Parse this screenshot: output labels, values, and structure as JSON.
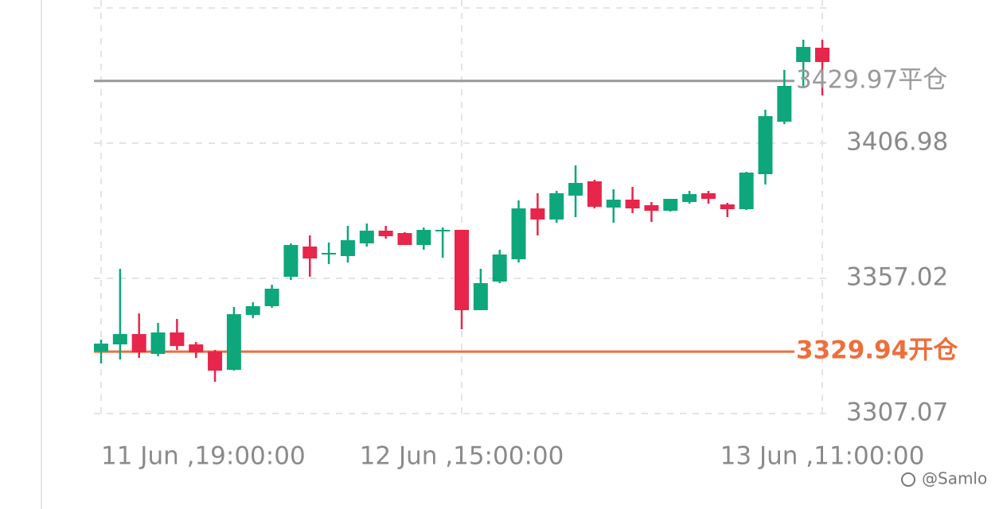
{
  "chart_data": {
    "type": "candlestick",
    "categories": [
      "11 Jun ,19:00:00",
      null,
      null,
      null,
      null,
      null,
      null,
      null,
      null,
      null,
      null,
      null,
      null,
      null,
      null,
      null,
      null,
      null,
      null,
      "12 Jun ,15:00:00",
      null,
      null,
      null,
      null,
      null,
      null,
      null,
      null,
      null,
      null,
      null,
      null,
      null,
      null,
      null,
      null,
      null,
      null,
      "13 Jun ,11:00:00"
    ],
    "open": [
      3329.98,
      3332.63,
      3336.45,
      3329.1,
      3337.04,
      3332.63,
      3329.98,
      3323.23,
      3343.5,
      3346.74,
      3357.61,
      3368.78,
      3365.84,
      3365.25,
      3369.95,
      3374.65,
      3373.77,
      3369.36,
      3374.65,
      3374.95,
      3345.27,
      3355.85,
      3364.08,
      3382.88,
      3378.77,
      3387.59,
      3392.88,
      3383.18,
      3386.12,
      3384.06,
      3382.0,
      3385.23,
      3388.47,
      3384.35,
      3382.59,
      3395.52,
      3414.92,
      3436.96,
      3442.25
    ],
    "high": [
      3334.39,
      3360.55,
      3344.09,
      3340.56,
      3342.03,
      3333.51,
      3330.57,
      3346.44,
      3348.21,
      3354.67,
      3369.95,
      3372.89,
      3370.25,
      3376.42,
      3377.3,
      3376.42,
      3374.07,
      3375.83,
      3375.83,
      3374.95,
      3360.55,
      3367.6,
      3385.82,
      3388.47,
      3389.35,
      3398.75,
      3393.46,
      3389.94,
      3390.82,
      3385.23,
      3386.41,
      3389.35,
      3389.35,
      3384.94,
      3396.4,
      3419.32,
      3434.02,
      3445.19,
      3445.19
    ],
    "low": [
      3325.58,
      3327.05,
      3327.63,
      3328.22,
      3330.57,
      3327.63,
      3318.82,
      3322.93,
      3342.33,
      3346.15,
      3356.43,
      3357.61,
      3362.31,
      3362.9,
      3368.78,
      3371.72,
      3369.36,
      3367.6,
      3364.66,
      3338.21,
      3345.27,
      3355.26,
      3362.9,
      3372.89,
      3377.59,
      3379.65,
      3382.88,
      3377.59,
      3381.12,
      3377.89,
      3381.71,
      3384.65,
      3384.65,
      3379.65,
      3382.3,
      3391.7,
      3414.03,
      3427.55,
      3424.61
    ],
    "close": [
      3332.92,
      3336.45,
      3329.69,
      3337.04,
      3332.04,
      3329.69,
      3322.93,
      3343.8,
      3346.74,
      3353.2,
      3369.36,
      3364.37,
      3366.43,
      3371.13,
      3374.65,
      3372.6,
      3369.36,
      3374.95,
      3374.95,
      3345.27,
      3355.26,
      3365.84,
      3382.88,
      3378.77,
      3388.47,
      3392.29,
      3383.47,
      3386.12,
      3382.88,
      3382.0,
      3386.41,
      3388.17,
      3386.41,
      3382.59,
      3396.11,
      3416.97,
      3428.14,
      3442.54,
      3436.96
    ],
    "up_color": "#0ea77b",
    "down_color": "#e8254a",
    "ylim": [
      3307.07,
      3456.94
    ],
    "yticks": [
      3307.07,
      3357.02,
      3406.98
    ],
    "grid": true,
    "levels": [
      {
        "value": 3429.97,
        "label": "3429.97平仓",
        "color": "#9a9a9a"
      },
      {
        "value": 3329.94,
        "label": "3329.94开仓",
        "color": "#ee6e3c"
      }
    ],
    "watermark": "@Samlo"
  }
}
